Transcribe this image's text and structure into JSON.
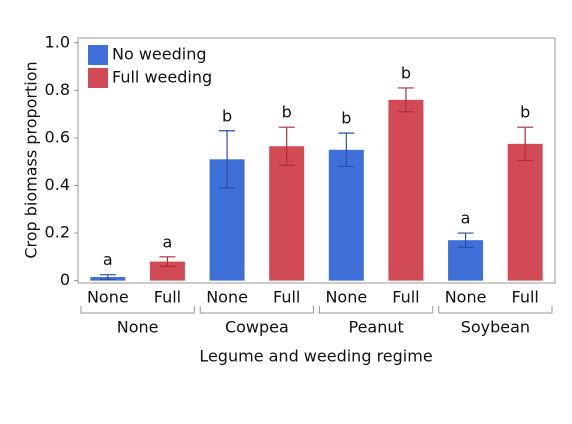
{
  "chart_data": {
    "type": "bar",
    "y_axis_label": "Crop biomass proportion",
    "x_axis_label": "Legume and weeding regime",
    "categories": [
      "None",
      "Cowpea",
      "Peanut",
      "Soybean"
    ],
    "bar_labels": [
      "None",
      "Full"
    ],
    "series": [
      {
        "name": "No weeding",
        "color": "#3f6fd8",
        "values": [
          0.015,
          0.51,
          0.55,
          0.17
        ],
        "errors": [
          0.01,
          0.12,
          0.07,
          0.03
        ],
        "letters": [
          "a",
          "b",
          "b",
          "a"
        ]
      },
      {
        "name": "Full weeding",
        "color": "#d34a57",
        "values": [
          0.08,
          0.565,
          0.76,
          0.575
        ],
        "errors": [
          0.02,
          0.08,
          0.05,
          0.07
        ],
        "letters": [
          "a",
          "b",
          "b",
          "b"
        ]
      }
    ],
    "ylim": [
      -0.01,
      1.02
    ],
    "yticks": [
      0,
      0.2,
      0.4,
      0.6,
      0.8,
      {
        "value": 1,
        "label": "1.0"
      }
    ],
    "legend": "upper left"
  }
}
